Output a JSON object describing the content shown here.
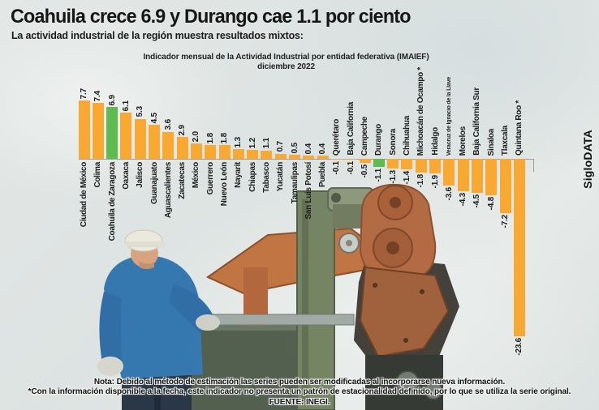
{
  "header": {
    "title": "Coahuila crece 6.9 y Durango cae 1.1 por ciento",
    "subtitle": "La actividad industrial de la región muestra resultados mixtos:"
  },
  "chart_data": {
    "type": "bar",
    "title": "Indicador mensual de la Actividad Industrial por entidad federativa (IMAIEF)",
    "subtitle": "diciembre 2022",
    "categories": [
      "Ciudad de México",
      "Colima",
      "Coahuila de Zaragoza",
      "Oaxaca",
      "Jalisco",
      "Guanajuato",
      "Aguascalientes",
      "Zacatecas",
      "México",
      "Guerrero",
      "Nuevo León",
      "Nayarit",
      "Chiapas",
      "Tabasco",
      "Yucatán",
      "Tamaulipas",
      "San Luis Potosí",
      "Puebla",
      "Querétaro",
      "Baja California",
      "Campeche",
      "Durango",
      "Sonora",
      "Chihuahua",
      "Michoacán de Ocampo *",
      "Hidalgo",
      "Veracruz de Ignacio de la Llave",
      "Morelos",
      "Baja California Sur",
      "Sinaloa",
      "Tlaxcala",
      "Quintana Roo *"
    ],
    "values": [
      7.7,
      7.4,
      6.9,
      6.1,
      5.3,
      4.5,
      3.6,
      2.9,
      2.0,
      1.8,
      1.8,
      1.3,
      1.2,
      1.1,
      0.7,
      0.5,
      0.4,
      0.4,
      -0.1,
      -0.1,
      -0.5,
      -1.1,
      -1.3,
      -1.4,
      -1.8,
      -1.9,
      -3.6,
      -4.3,
      -4.5,
      -4.8,
      -7.2,
      -23.6
    ],
    "highlight_indices": [
      2,
      21
    ],
    "small_label_indices": [
      26
    ],
    "bar_color": "#F9A832",
    "highlight_color": "#5FBA4F",
    "label_color": "#1d1d1d",
    "ylim": [
      -23.6,
      7.7
    ],
    "grid": false,
    "legend": false
  },
  "branding": {
    "vertical_label": "SigloDATA"
  },
  "footer": {
    "note1": "Nota: Debido al método de estimación las series pueden ser modificadas al incorporarse nueva información.",
    "note2": "*Con la información disponible a la fecha, este indicador no presenta un patrón de estacionalidad definido, por lo que se utiliza la serie original.",
    "source": "FUENTE: INEGI."
  }
}
